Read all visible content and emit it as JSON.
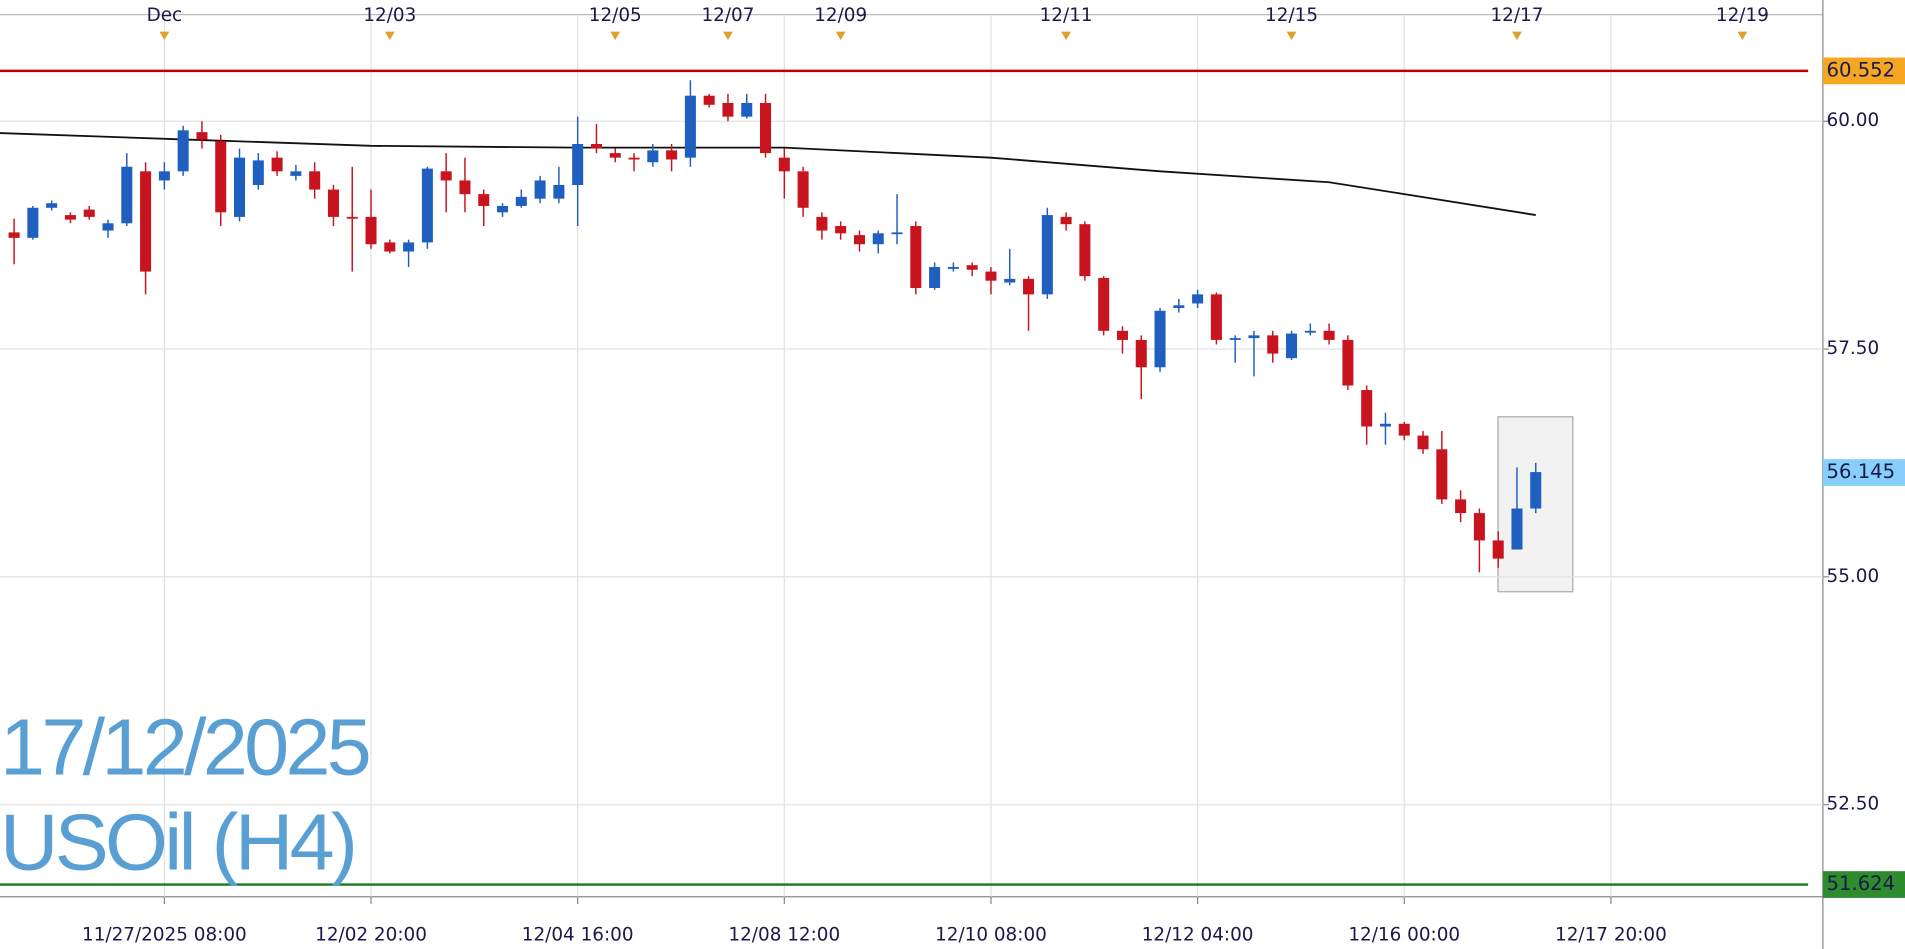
{
  "chart_data": {
    "type": "candlestick",
    "watermark_date": "17/12/2025",
    "watermark_symbol": "USOil (H4)",
    "xlim": [
      -8.75,
      87.5
    ],
    "ylim": [
      51.49,
      61.33
    ],
    "yticks": [
      {
        "value": 60,
        "label": "60.00"
      },
      {
        "value": 57.5,
        "label": "57.50"
      },
      {
        "value": 55,
        "label": "55.00"
      },
      {
        "value": 52.5,
        "label": "52.50"
      }
    ],
    "xticks": [
      {
        "value": 0,
        "label": "11/27/2025 08:00"
      },
      {
        "value": 11,
        "label": "12/02 20:00"
      },
      {
        "value": 22,
        "label": "12/04 16:00"
      },
      {
        "value": 33,
        "label": "12/08 12:00"
      },
      {
        "value": 44,
        "label": "12/10 08:00"
      },
      {
        "value": 55,
        "label": "12/12 04:00"
      },
      {
        "value": 66,
        "label": "12/16 00:00"
      },
      {
        "value": 77,
        "label": "12/17 20:00"
      }
    ],
    "top_xticks": [
      {
        "value": 0,
        "label": "Dec"
      },
      {
        "value": 12,
        "label": "12/03"
      },
      {
        "value": 24,
        "label": "12/05"
      },
      {
        "value": 30,
        "label": "12/07"
      },
      {
        "value": 36,
        "label": "12/09"
      },
      {
        "value": 48,
        "label": "12/11"
      },
      {
        "value": 60,
        "label": "12/15"
      },
      {
        "value": 72,
        "label": "12/17"
      },
      {
        "value": 84,
        "label": "12/19"
      }
    ],
    "grid": true,
    "up_color": "#1f5fbf",
    "down_color": "#c8141e",
    "x": [
      -8,
      -7,
      -6,
      -5,
      -4,
      -3,
      -2,
      -1,
      0,
      1,
      2,
      3,
      4,
      5,
      6,
      7,
      8,
      9,
      10,
      11,
      12,
      13,
      14,
      15,
      16,
      17,
      18,
      19,
      20,
      21,
      22,
      23,
      24,
      25,
      26,
      27,
      28,
      29,
      30,
      31,
      32,
      33,
      34,
      35,
      36,
      37,
      38,
      39,
      40,
      41,
      42,
      43,
      44,
      45,
      46,
      47,
      48,
      49,
      50,
      51,
      52,
      53,
      54,
      55,
      56,
      57,
      58,
      59,
      60,
      61,
      62,
      63,
      64,
      65,
      66,
      67,
      68,
      69,
      70,
      71,
      72,
      73
    ],
    "open": [
      58.78,
      58.72,
      59.05,
      58.97,
      59.03,
      58.8,
      58.88,
      59.45,
      59.35,
      59.45,
      59.88,
      59.78,
      58.95,
      59.3,
      59.6,
      59.4,
      59.45,
      59.25,
      58.95,
      58.95,
      58.67,
      58.57,
      58.67,
      59.45,
      59.35,
      59.2,
      59.0,
      59.07,
      59.15,
      59.15,
      59.3,
      59.75,
      59.65,
      59.6,
      59.55,
      59.68,
      59.6,
      60.28,
      60.2,
      60.05,
      60.2,
      59.6,
      59.45,
      58.95,
      58.85,
      58.75,
      58.65,
      58.77,
      58.85,
      58.17,
      58.38,
      58.42,
      58.35,
      58.23,
      58.27,
      58.1,
      58.95,
      58.87,
      58.28,
      57.7,
      57.6,
      57.3,
      57.95,
      58.0,
      58.1,
      57.6,
      57.62,
      57.65,
      57.4,
      57.68,
      57.7,
      57.6,
      57.05,
      56.65,
      56.68,
      56.55,
      56.4,
      55.85,
      55.7,
      55.4,
      55.3,
      55.75
    ],
    "high": [
      58.93,
      59.07,
      59.13,
      59.0,
      59.07,
      58.92,
      59.65,
      59.55,
      59.55,
      59.95,
      60.0,
      59.85,
      59.7,
      59.65,
      59.67,
      59.52,
      59.55,
      59.3,
      59.5,
      59.25,
      58.7,
      58.7,
      59.5,
      59.65,
      59.6,
      59.25,
      59.1,
      59.25,
      59.4,
      59.5,
      60.05,
      59.97,
      59.7,
      59.65,
      59.75,
      59.75,
      60.45,
      60.3,
      60.3,
      60.3,
      60.3,
      59.7,
      59.5,
      59.0,
      58.9,
      58.8,
      58.8,
      59.2,
      58.9,
      58.45,
      58.45,
      58.45,
      58.4,
      58.6,
      58.3,
      59.05,
      59.0,
      58.9,
      58.3,
      57.75,
      57.65,
      57.95,
      58.05,
      58.15,
      58.12,
      57.65,
      57.7,
      57.7,
      57.7,
      57.78,
      57.78,
      57.65,
      57.1,
      56.8,
      56.7,
      56.6,
      56.6,
      55.95,
      55.75,
      55.5,
      56.2,
      56.25
    ],
    "low": [
      58.43,
      58.7,
      59.02,
      58.88,
      58.92,
      58.72,
      58.85,
      58.1,
      59.25,
      59.4,
      59.7,
      58.85,
      58.9,
      59.25,
      59.4,
      59.35,
      59.15,
      58.85,
      58.35,
      58.6,
      58.55,
      58.4,
      58.6,
      59.0,
      59.0,
      58.85,
      58.95,
      59.05,
      59.1,
      59.1,
      58.85,
      59.65,
      59.55,
      59.45,
      59.5,
      59.45,
      59.5,
      60.15,
      60.0,
      60.03,
      59.6,
      59.15,
      58.95,
      58.7,
      58.7,
      58.57,
      58.55,
      58.65,
      58.1,
      58.15,
      58.35,
      58.3,
      58.1,
      58.2,
      57.7,
      58.05,
      58.8,
      58.25,
      57.65,
      57.45,
      56.95,
      57.25,
      57.9,
      57.95,
      57.55,
      57.35,
      57.2,
      57.35,
      57.38,
      57.65,
      57.55,
      57.05,
      56.45,
      56.45,
      56.5,
      56.35,
      55.8,
      55.6,
      55.05,
      55.1,
      55.3,
      55.7
    ],
    "close": [
      58.72,
      59.05,
      59.1,
      58.92,
      58.95,
      58.88,
      59.5,
      58.35,
      59.45,
      59.9,
      59.8,
      59.0,
      59.6,
      59.57,
      59.45,
      59.45,
      59.25,
      58.95,
      58.93,
      58.65,
      58.57,
      58.67,
      59.48,
      59.35,
      59.2,
      59.07,
      59.07,
      59.17,
      59.35,
      59.3,
      59.75,
      59.7,
      59.6,
      59.58,
      59.68,
      59.58,
      60.28,
      60.18,
      60.05,
      60.2,
      59.65,
      59.45,
      59.05,
      58.8,
      58.77,
      58.65,
      58.77,
      58.78,
      58.17,
      58.4,
      58.4,
      58.37,
      58.25,
      58.27,
      58.1,
      58.97,
      58.87,
      58.3,
      57.7,
      57.6,
      57.3,
      57.92,
      57.98,
      58.1,
      57.6,
      57.62,
      57.65,
      57.45,
      57.67,
      57.7,
      57.6,
      57.1,
      56.65,
      56.68,
      56.55,
      56.4,
      55.85,
      55.7,
      55.4,
      55.2,
      55.75,
      56.15
    ],
    "moving_average": {
      "color": "#111111",
      "x": [
        -8.75,
        1,
        11,
        22,
        33,
        44,
        53,
        62,
        66,
        73
      ],
      "values": [
        59.87,
        59.8,
        59.73,
        59.71,
        59.71,
        59.6,
        59.45,
        59.33,
        59.2,
        58.97
      ]
    },
    "levels": [
      {
        "value": 60.552,
        "color": "#c00000",
        "label_bg": "#f5a623"
      },
      {
        "value": 51.624,
        "color": "#1a7a1a",
        "label_bg": "#2e8b2e"
      }
    ],
    "last_price": {
      "value": 56.145,
      "label_bg": "#87cefa"
    }
  }
}
